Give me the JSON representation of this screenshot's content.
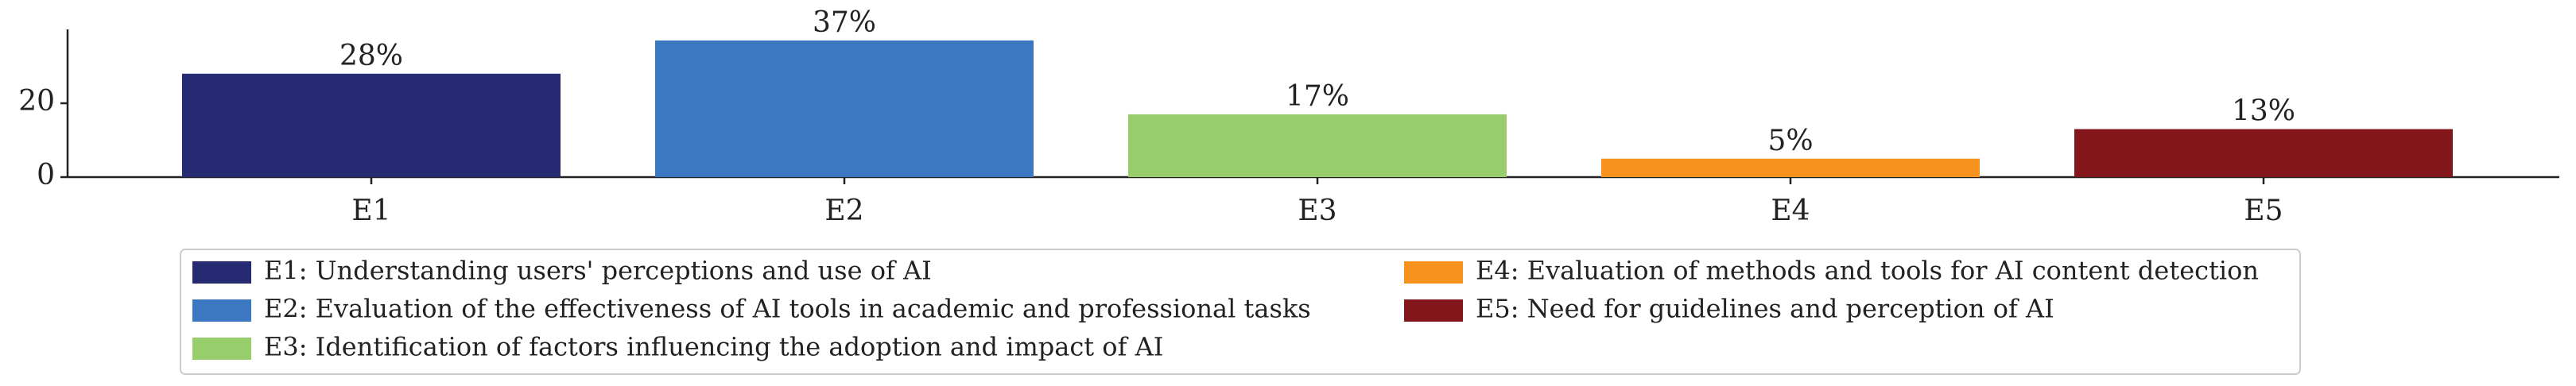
{
  "chart_data": {
    "type": "bar",
    "categories": [
      "E1",
      "E2",
      "E3",
      "E4",
      "E5"
    ],
    "values": [
      28,
      37,
      17,
      5,
      13
    ],
    "value_labels": [
      "28%",
      "37%",
      "17%",
      "5%",
      "13%"
    ],
    "colors": [
      "#262a73",
      "#3b78c1",
      "#97cd6a",
      "#f7921e",
      "#82161a"
    ],
    "legend_labels": [
      "E1: Understanding users' perceptions and use of AI",
      "E2: Evaluation of the effectiveness of AI tools in academic and professional tasks",
      "E3: Identification of factors influencing the adoption and impact of AI",
      "E4: Evaluation of methods and tools for AI content detection",
      "E5: Need for guidelines and perception of AI"
    ],
    "ylim": [
      0,
      40
    ],
    "yticks": [
      0,
      20
    ]
  }
}
